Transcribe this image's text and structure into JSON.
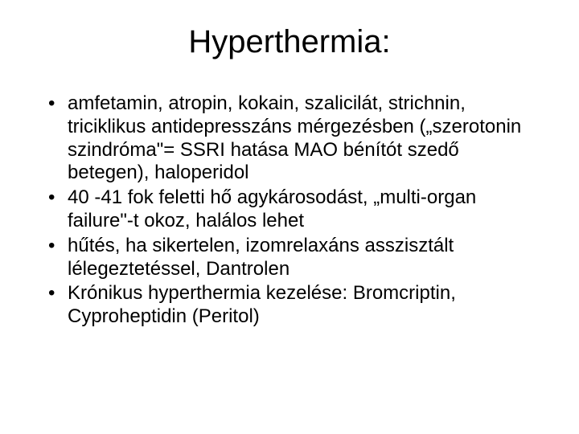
{
  "slide": {
    "title": "Hyperthermia:",
    "title_fontsize": 40,
    "body_fontsize": 24,
    "background_color": "#ffffff",
    "text_color": "#000000",
    "font_family": "Arial",
    "bullets": [
      "amfetamin, atropin, kokain, szalicilát, strichnin, triciklikus antidepresszáns mérgezésben („szerotonin szindróma\"= SSRI hatása MAO bénítót szedő betegen), haloperidol",
      " 40 -41 fok feletti hő agykárosodást, „multi-organ failure\"-t okoz, halálos lehet",
      "hűtés, ha sikertelen, izomrelaxáns asszisztált lélegeztetéssel, Dantrolen",
      "Krónikus hyperthermia kezelése: Bromcriptin, Cyproheptidin (Peritol)"
    ]
  }
}
